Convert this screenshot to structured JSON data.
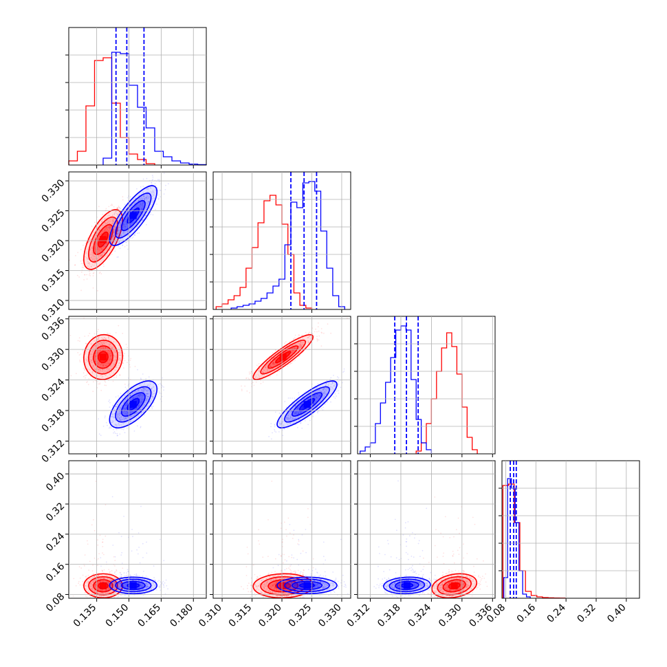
{
  "chart_data": {
    "type": "corner",
    "grid": true,
    "colors": {
      "series_a": "#ff0000",
      "series_b": "#0000ff"
    },
    "parameters": [
      {
        "range": [
          0.122,
          0.186
        ],
        "ticks": [
          0.135,
          0.15,
          0.165,
          0.18
        ],
        "tick_labels": [
          "0.135",
          "0.150",
          "0.165",
          "0.180"
        ]
      },
      {
        "range": [
          0.3085,
          0.3315
        ],
        "ticks": [
          0.31,
          0.315,
          0.32,
          0.325,
          0.33
        ],
        "tick_labels": [
          "0.310",
          "0.315",
          "0.320",
          "0.325",
          "0.330"
        ]
      },
      {
        "range": [
          0.3095,
          0.3365
        ],
        "ticks": [
          0.312,
          0.318,
          0.324,
          0.33,
          0.336
        ],
        "tick_labels": [
          "0.312",
          "0.318",
          "0.324",
          "0.330",
          "0.336"
        ]
      },
      {
        "range": [
          0.07,
          0.435
        ],
        "ticks": [
          0.08,
          0.16,
          0.24,
          0.32,
          0.4
        ],
        "tick_labels": [
          "0.08",
          "0.16",
          "0.24",
          "0.32",
          "0.40"
        ]
      }
    ],
    "series": [
      {
        "color": "#ff0000",
        "means": [
          0.138,
          0.3202,
          0.3285,
          0.103
        ],
        "sigmas": [
          0.0045,
          0.0025,
          0.0022,
          0.016
        ],
        "correlations": {
          "0-1": 0.65,
          "0-2": 0.05,
          "0-3": 0.0,
          "1-2": 0.9,
          "1-3": 0.05,
          "2-3": 0.25
        },
        "histograms": [
          {
            "bins": [
              0.124,
              0.128,
              0.132,
              0.136,
              0.14,
              0.144,
              0.148,
              0.152,
              0.156,
              0.16
            ],
            "counts": [
              0.03,
              0.1,
              0.43,
              0.76,
              0.78,
              0.45,
              0.2,
              0.08,
              0.04,
              0.01
            ]
          },
          {
            "bins": [
              0.3095,
              0.3105,
              0.3115,
              0.3125,
              0.3135,
              0.3145,
              0.3155,
              0.3165,
              0.3175,
              0.3185,
              0.3195,
              0.3205,
              0.3215,
              0.3225,
              0.3235,
              0.3245
            ],
            "counts": [
              0.02,
              0.04,
              0.07,
              0.1,
              0.16,
              0.3,
              0.45,
              0.63,
              0.79,
              0.83,
              0.76,
              0.62,
              0.4,
              0.12,
              0.03,
              0.01
            ]
          },
          {
            "bins": [
              0.3215,
              0.3225,
              0.3235,
              0.3245,
              0.3255,
              0.3265,
              0.3275,
              0.3285,
              0.3295,
              0.3305,
              0.3315,
              0.3325
            ],
            "counts": [
              0.02,
              0.08,
              0.22,
              0.4,
              0.6,
              0.77,
              0.88,
              0.78,
              0.58,
              0.34,
              0.12,
              0.03
            ]
          },
          {
            "bins": [
              0.08,
              0.095,
              0.11,
              0.125,
              0.14,
              0.155,
              0.17,
              0.185,
              0.2,
              0.215,
              0.23
            ],
            "counts": [
              0.82,
              0.83,
              0.55,
              0.2,
              0.05,
              0.02,
              0.01,
              0.005,
              0.003,
              0.002,
              0.001
            ]
          }
        ]
      },
      {
        "color": "#0000ff",
        "means": [
          0.152,
          0.3242,
          0.3192,
          0.104
        ],
        "sigmas": [
          0.0055,
          0.0025,
          0.0023,
          0.011
        ],
        "correlations": {
          "0-1": 0.8,
          "0-2": 0.65,
          "0-3": 0.0,
          "1-2": 0.85,
          "1-3": 0.0,
          "2-3": 0.1
        },
        "quantiles": [
          [
            0.144,
            0.149,
            0.157
          ],
          [
            0.3215,
            0.3237,
            0.3258
          ],
          [
            0.3168,
            0.3191,
            0.3214
          ],
          [
            0.092,
            0.101,
            0.108
          ]
        ],
        "histograms": [
          {
            "bins": [
              0.14,
              0.144,
              0.148,
              0.152,
              0.156,
              0.16,
              0.164,
              0.168,
              0.172,
              0.176,
              0.18,
              0.184
            ],
            "counts": [
              0.05,
              0.82,
              0.81,
              0.58,
              0.42,
              0.27,
              0.1,
              0.06,
              0.03,
              0.015,
              0.007,
              0.003
            ]
          },
          {
            "bins": [
              0.312,
              0.313,
              0.314,
              0.315,
              0.316,
              0.317,
              0.318,
              0.319,
              0.32,
              0.321,
              0.322,
              0.323,
              0.324,
              0.325,
              0.326,
              0.327,
              0.328,
              0.329,
              0.33
            ],
            "counts": [
              0.01,
              0.02,
              0.03,
              0.04,
              0.06,
              0.08,
              0.12,
              0.17,
              0.22,
              0.47,
              0.78,
              0.74,
              0.92,
              0.93,
              0.86,
              0.57,
              0.3,
              0.1,
              0.02
            ]
          },
          {
            "bins": [
              0.3105,
              0.3115,
              0.3125,
              0.3135,
              0.3145,
              0.3155,
              0.3165,
              0.3175,
              0.3185,
              0.3195,
              0.3205,
              0.3215,
              0.3225,
              0.3235
            ],
            "counts": [
              0.02,
              0.05,
              0.08,
              0.22,
              0.37,
              0.52,
              0.7,
              0.9,
              0.93,
              0.9,
              0.54,
              0.25,
              0.08,
              0.03
            ]
          },
          {
            "bins": [
              0.08,
              0.09,
              0.1,
              0.11,
              0.12,
              0.13,
              0.14
            ],
            "counts": [
              0.15,
              0.87,
              0.8,
              0.55,
              0.2,
              0.03,
              0.01
            ]
          }
        ]
      }
    ]
  }
}
